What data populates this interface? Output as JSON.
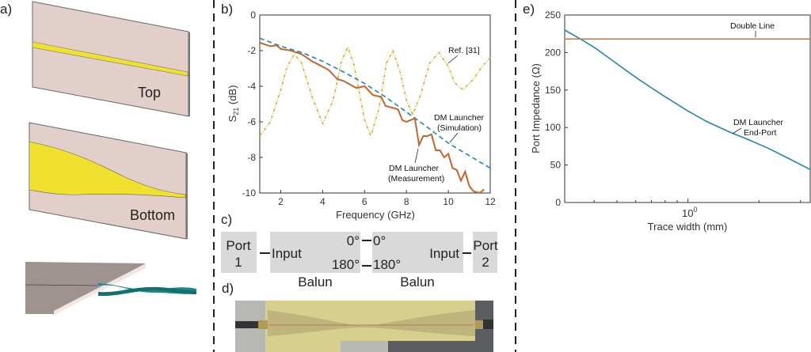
{
  "panels": {
    "a": {
      "label": "a)",
      "top_text": "Top",
      "bottom_text": "Bottom"
    },
    "b": {
      "label": "b)"
    },
    "c": {
      "label": "c)",
      "port1": [
        "Port",
        "1"
      ],
      "port2": [
        "Port",
        "2"
      ],
      "input": "Input",
      "deg0": "0°",
      "deg180": "180°",
      "balun": "Balun"
    },
    "d": {
      "label": "d)"
    },
    "e": {
      "label": "e)"
    }
  },
  "colors": {
    "measurement": "#c8642a",
    "simulation": "#1a8ab0",
    "ref": "#e0b030",
    "end_port": "#1a8ab0",
    "double_line": "#c07a3a",
    "box": "#d9d9d9",
    "board": "#e2cfc9",
    "copper": "#f0e030"
  },
  "chart_data": [
    {
      "type": "line",
      "title": "",
      "xlabel": "Frequency (GHz)",
      "ylabel": "S21 (dB)",
      "ylabel_main": "S",
      "ylabel_sub": "21",
      "ylabel_unit": " (dB)",
      "xlim": [
        1,
        12
      ],
      "ylim": [
        -10,
        0
      ],
      "xticks": [
        "2",
        "4",
        "6",
        "8",
        "10",
        "12"
      ],
      "xtick_values": [
        2,
        4,
        6,
        8,
        10,
        12
      ],
      "yticks": [
        "0",
        "-2",
        "-4",
        "-6",
        "-8",
        "-10"
      ],
      "ytick_values": [
        0,
        -2,
        -4,
        -6,
        -8,
        -10
      ],
      "annotations": [
        "Ref. [31]",
        "DM Launcher",
        "(Simulation)",
        "DM Launcher",
        "(Measurement)"
      ],
      "series": [
        {
          "name": "Ref. [31]",
          "style": "dash-dot",
          "x": [
            1,
            1.5,
            2,
            2.3,
            2.65,
            3,
            3.5,
            4,
            4.5,
            4.9,
            5.2,
            5.5,
            6,
            6.3,
            6.7,
            7.05,
            7.35,
            7.7,
            8,
            8.3,
            8.7,
            9.1,
            9.55,
            10,
            10.3,
            10.7,
            11.2,
            11.6,
            12
          ],
          "y": [
            -6.8,
            -6.0,
            -4.2,
            -2.9,
            -2.2,
            -2.7,
            -4.6,
            -6.1,
            -4.8,
            -2.6,
            -1.8,
            -2.8,
            -5.9,
            -6.8,
            -5.2,
            -2.7,
            -2.0,
            -3.2,
            -4.8,
            -5.6,
            -4.4,
            -2.7,
            -2.1,
            -2.9,
            -3.8,
            -4.2,
            -3.6,
            -2.9,
            -2.4
          ]
        },
        {
          "name": "DM Launcher (Simulation)",
          "style": "dashed",
          "x": [
            1,
            2,
            3,
            4,
            5,
            6,
            7,
            8,
            9,
            10,
            11,
            12
          ],
          "y": [
            -1.3,
            -1.75,
            -2.1,
            -2.6,
            -3.2,
            -3.85,
            -4.6,
            -5.45,
            -6.3,
            -7.2,
            -7.9,
            -8.6
          ]
        },
        {
          "name": "DM Launcher (Measurement)",
          "style": "solid",
          "x": [
            1,
            1.5,
            1.8,
            2,
            2.5,
            3,
            3.5,
            4,
            4.3,
            4.7,
            5,
            5.3,
            5.6,
            6,
            6.4,
            6.8,
            7,
            7.3,
            7.6,
            7.8,
            8,
            8.2,
            8.4,
            8.6,
            8.8,
            9,
            9.2,
            9.4,
            9.6,
            9.8,
            10,
            10.2,
            10.4,
            10.6,
            10.8,
            11,
            11.2,
            11.5,
            11.7
          ],
          "y": [
            -1.55,
            -1.75,
            -1.7,
            -1.9,
            -2.0,
            -2.2,
            -2.6,
            -2.9,
            -3.1,
            -3.6,
            -3.7,
            -3.9,
            -4.1,
            -4.0,
            -4.5,
            -4.6,
            -5.1,
            -5.2,
            -5.3,
            -5.9,
            -6.0,
            -5.9,
            -5.8,
            -7.3,
            -6.8,
            -6.8,
            -6.7,
            -7.6,
            -7.6,
            -8.0,
            -7.8,
            -8.6,
            -8.7,
            -9.3,
            -8.8,
            -9.6,
            -9.9,
            -10.0,
            -9.8
          ]
        }
      ]
    },
    {
      "type": "line",
      "title": "",
      "xlabel": "Trace width (mm)",
      "ylabel": "Port Impedance (Ω)",
      "xscale": "log",
      "xlim": [
        0.3,
        3.3
      ],
      "ylim": [
        0,
        250
      ],
      "xticks": [
        "10",
        "0"
      ],
      "xtick_values": [
        1
      ],
      "yticks": [
        "0",
        "50",
        "100",
        "150",
        "200",
        "250"
      ],
      "ytick_values": [
        0,
        50,
        100,
        150,
        200,
        250
      ],
      "annotations": [
        "Double Line",
        "DM Launcher",
        "End-Port"
      ],
      "series": [
        {
          "name": "DM Launcher End-Port",
          "x": [
            0.3,
            0.35,
            0.4,
            0.5,
            0.6,
            0.7,
            0.8,
            1,
            1.2,
            1.5,
            1.8,
            2.2,
            2.7,
            3.3
          ],
          "y": [
            230,
            218,
            207,
            185,
            167,
            153,
            141,
            122,
            108,
            94,
            84,
            72,
            58,
            44
          ]
        },
        {
          "name": "Double Line",
          "x": [
            0.3,
            3.3
          ],
          "y": [
            218,
            218
          ]
        }
      ]
    }
  ]
}
